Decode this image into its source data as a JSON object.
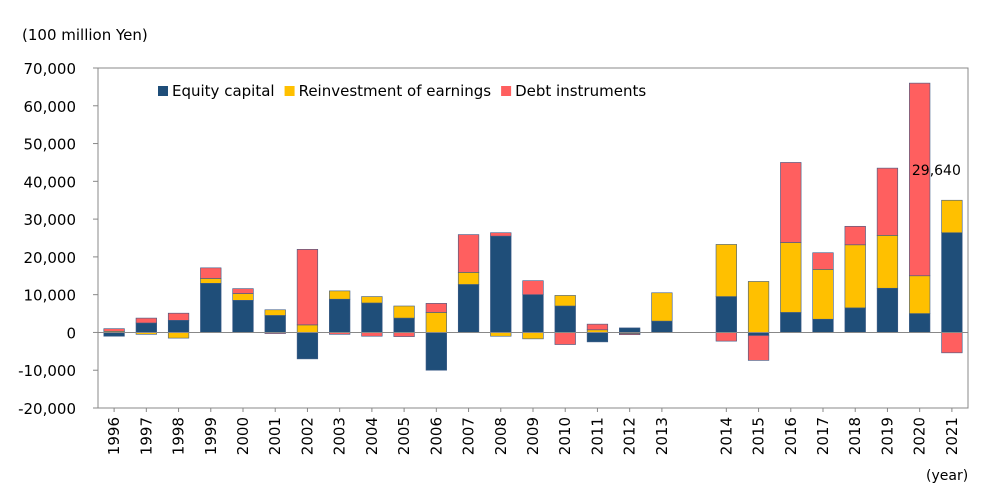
{
  "chart_data": {
    "type": "bar",
    "stacked": true,
    "unit_label": "(100 million Yen)",
    "x_unit_label": "(year)",
    "categories": [
      "1996",
      "1997",
      "1998",
      "1999",
      "2000",
      "2001",
      "2002",
      "2003",
      "2004",
      "2005",
      "2006",
      "2007",
      "2008",
      "2009",
      "2010",
      "2011",
      "2012",
      "2013",
      "",
      "2014",
      "2015",
      "2016",
      "2017",
      "2018",
      "2019",
      "2020",
      "2021"
    ],
    "ylim": [
      -20000,
      70000
    ],
    "y_ticks": [
      70000,
      60000,
      50000,
      40000,
      30000,
      20000,
      10000,
      0,
      -10000,
      -20000
    ],
    "y_tick_labels": [
      "70,000",
      "60,000",
      "50,000",
      "40,000",
      "30,000",
      "20,000",
      "10,000",
      "0",
      "-10,000",
      "-20,000"
    ],
    "legend": {
      "position": "top-left",
      "entries": [
        "Equity capital",
        "Reinvestment of earnings",
        "Debt instruments"
      ]
    },
    "series": [
      {
        "name": "Equity capital",
        "color": "#1f4e79",
        "values": [
          -1000,
          2500,
          3200,
          13000,
          8500,
          4500,
          -7000,
          8800,
          7800,
          3800,
          -10000,
          12700,
          25500,
          10000,
          7000,
          -2500,
          1200,
          3000,
          null,
          9500,
          -800,
          5300,
          3500,
          6500,
          11700,
          5000,
          26400
        ]
      },
      {
        "name": "Reinvestment of earnings",
        "color": "#ffc000",
        "values": [
          300,
          -500,
          -1500,
          1300,
          1800,
          1500,
          2000,
          2200,
          1700,
          3200,
          5300,
          3200,
          -1000,
          -1700,
          2800,
          700,
          -300,
          7500,
          null,
          13800,
          13500,
          18500,
          13200,
          16700,
          14000,
          10000,
          8600
        ]
      },
      {
        "name": "Debt instruments",
        "color": "#ff5f5f",
        "values": [
          700,
          1300,
          1900,
          2800,
          1300,
          -300,
          20000,
          -500,
          -1000,
          -1100,
          2400,
          10000,
          900,
          3700,
          -3200,
          1500,
          -300,
          0,
          null,
          -2300,
          -6600,
          21200,
          4400,
          4900,
          17800,
          51000,
          -5400
        ]
      }
    ],
    "annotations": [
      {
        "category": "2021",
        "text": "29,640"
      }
    ],
    "grid": false
  }
}
